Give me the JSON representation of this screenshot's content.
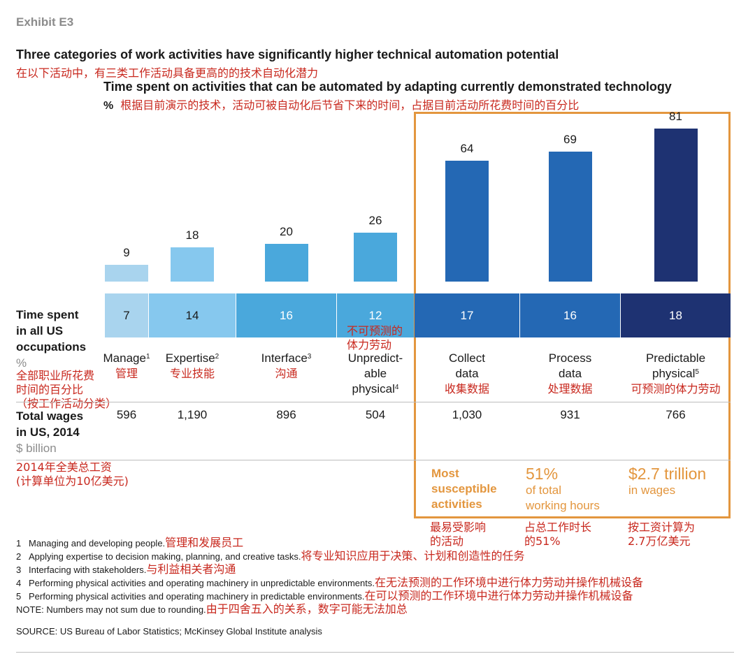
{
  "exhibit": "Exhibit E3",
  "title": "Three categories of work activities have significantly higher technical automation potential",
  "title_cn": "在以下活动中，有三类工作活动具备更高的的技术自动化潜力",
  "subtitle": "Time spent on activities that can be automated by adapting currently demonstrated technology",
  "unit": "%",
  "unit_cn": "根据目前演示的技术，活动可被自动化后节省下来的时间，占据目前活动所花费时间的百分比",
  "chart_data": {
    "type": "bar",
    "categories": [
      "Manage",
      "Expertise",
      "Interface",
      "Unpredictable physical",
      "Collect data",
      "Process data",
      "Predictable physical"
    ],
    "values": [
      9,
      18,
      20,
      26,
      64,
      69,
      81
    ],
    "ylim": [
      0,
      100
    ],
    "grid": false,
    "time_spent_pct": [
      7,
      14,
      16,
      12,
      17,
      16,
      18
    ],
    "total_wages_billion": [
      "596",
      "1,190",
      "896",
      "504",
      "1,030",
      "931",
      "766"
    ]
  },
  "colors": [
    "#a9d4ee",
    "#86c8ee",
    "#4aa8dc",
    "#4aa8dc",
    "#2468b4",
    "#2468b4",
    "#1e3272"
  ],
  "cell_text_colors": [
    "#1a1a1a",
    "#1a1a1a",
    "#ffffff",
    "#ffffff",
    "#ffffff",
    "#ffffff",
    "#ffffff"
  ],
  "categories_display": [
    {
      "lines": [
        "Manage"
      ],
      "sup": "1",
      "cn": [
        "管理"
      ]
    },
    {
      "lines": [
        "Expertise"
      ],
      "sup": "2",
      "cn": [
        "专业技能"
      ]
    },
    {
      "lines": [
        "Interface"
      ],
      "sup": "3",
      "cn": [
        "沟通"
      ]
    },
    {
      "lines": [
        "Unpredict-",
        "able",
        "physical"
      ],
      "sup": "4",
      "cn": []
    },
    {
      "lines": [
        "Collect",
        "data"
      ],
      "sup": "",
      "cn": [
        "收集数据"
      ]
    },
    {
      "lines": [
        "Process",
        "data"
      ],
      "sup": "",
      "cn": [
        "处理数据"
      ]
    },
    {
      "lines": [
        "Predictable",
        "physical"
      ],
      "sup": "5",
      "cn": [
        "可预测的体力劳动"
      ]
    }
  ],
  "unpredictable_cn": [
    "不可预测的",
    "体力劳动"
  ],
  "row1": {
    "label": [
      "Time spent",
      "in all US",
      "occupations"
    ],
    "unit": "%",
    "cn": [
      "全部职业所花费",
      "时间的百分比",
      "（按工作活动分类）"
    ]
  },
  "row2": {
    "label": [
      "Total wages",
      "in US, 2014"
    ],
    "unit": "$ billion",
    "cn": [
      "2014年全美总工资",
      "(计算单位为10亿美元)"
    ]
  },
  "highlights": {
    "h1": {
      "lines": [
        "Most",
        "susceptible",
        "activities"
      ],
      "cn": [
        "最易受影响",
        "的活动"
      ]
    },
    "h2": {
      "big": "51%",
      "lines": [
        "of total",
        "working hours"
      ],
      "cn": [
        "占总工作时长",
        "的51%"
      ]
    },
    "h3": {
      "big": "$2.7 trillion",
      "lines": [
        "in wages"
      ],
      "cn": [
        "按工资计算为",
        "2.7万亿美元"
      ]
    }
  },
  "footnotes": [
    {
      "num": "1",
      "text": "Managing and developing people.",
      "cn": "管理和发展员工"
    },
    {
      "num": "2",
      "text": "Applying expertise to decision making, planning, and creative tasks.",
      "cn": "将专业知识应用于决策、计划和创造性的任务"
    },
    {
      "num": "3",
      "text": "Interfacing with stakeholders.",
      "cn": "与利益相关者沟通"
    },
    {
      "num": "4",
      "text": "Performing physical activities and operating machinery in unpredictable environments.",
      "cn": "在无法预测的工作环境中进行体力劳动并操作机械设备"
    },
    {
      "num": "5",
      "text": "Performing physical activities and operating machinery in predictable environments.",
      "cn": "在可以预测的工作环境中进行体力劳动并操作机械设备"
    }
  ],
  "note": {
    "text": "NOTE: Numbers may not sum due to rounding.",
    "cn": "由于四舍五入的关系，数字可能无法加总"
  },
  "source": "SOURCE:  US Bureau of Labor Statistics; McKinsey Global Institute analysis"
}
